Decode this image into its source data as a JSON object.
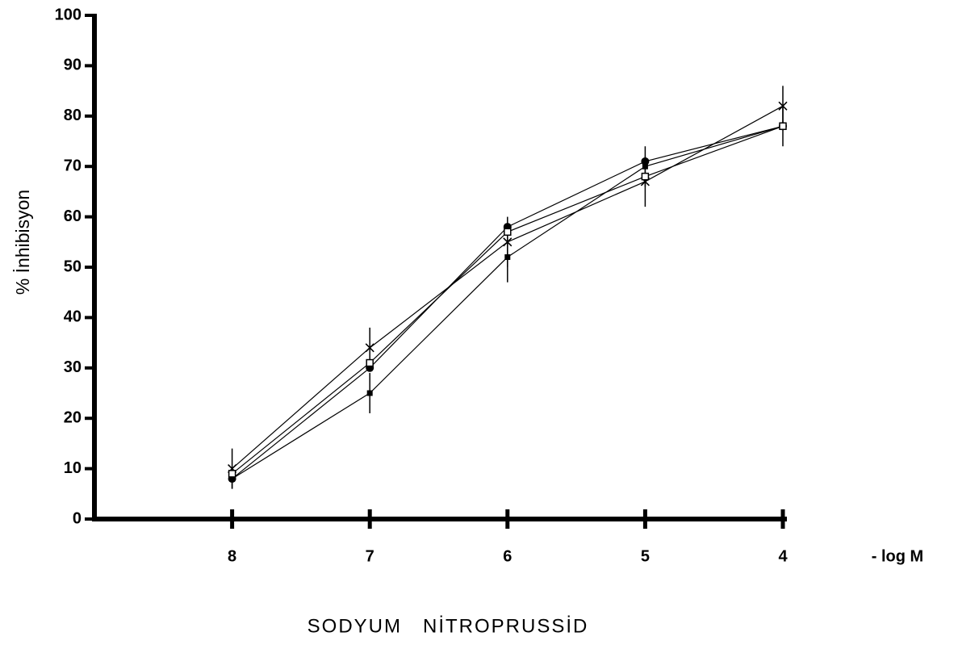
{
  "chart_data": {
    "type": "line",
    "ylabel": "% İnhibisyon",
    "xlabel": "SODYUM   NİTROPRUSSİD",
    "xunit": "- log M",
    "x": [
      8,
      7,
      6,
      5,
      4
    ],
    "xlim": [
      9,
      4
    ],
    "xticks": [
      8,
      7,
      6,
      5,
      4
    ],
    "ylim": [
      0,
      100
    ],
    "yticks": [
      0,
      10,
      20,
      30,
      40,
      50,
      60,
      70,
      80,
      90,
      100
    ],
    "series": [
      {
        "color": "#000000",
        "marker": "x",
        "values": [
          10,
          34,
          55,
          67,
          82
        ],
        "errors": [
          4,
          4,
          5,
          5,
          4
        ]
      },
      {
        "color": "#000000",
        "marker": "circle",
        "values": [
          8,
          30,
          58,
          71,
          78
        ]
      },
      {
        "color": "#000000",
        "marker": "square",
        "values": [
          8,
          25,
          52,
          70,
          78
        ],
        "errors": [
          2,
          4,
          5,
          4,
          4
        ]
      },
      {
        "color": "#000000",
        "marker": "open-square",
        "values": [
          9,
          31,
          57,
          68,
          78
        ]
      }
    ]
  }
}
